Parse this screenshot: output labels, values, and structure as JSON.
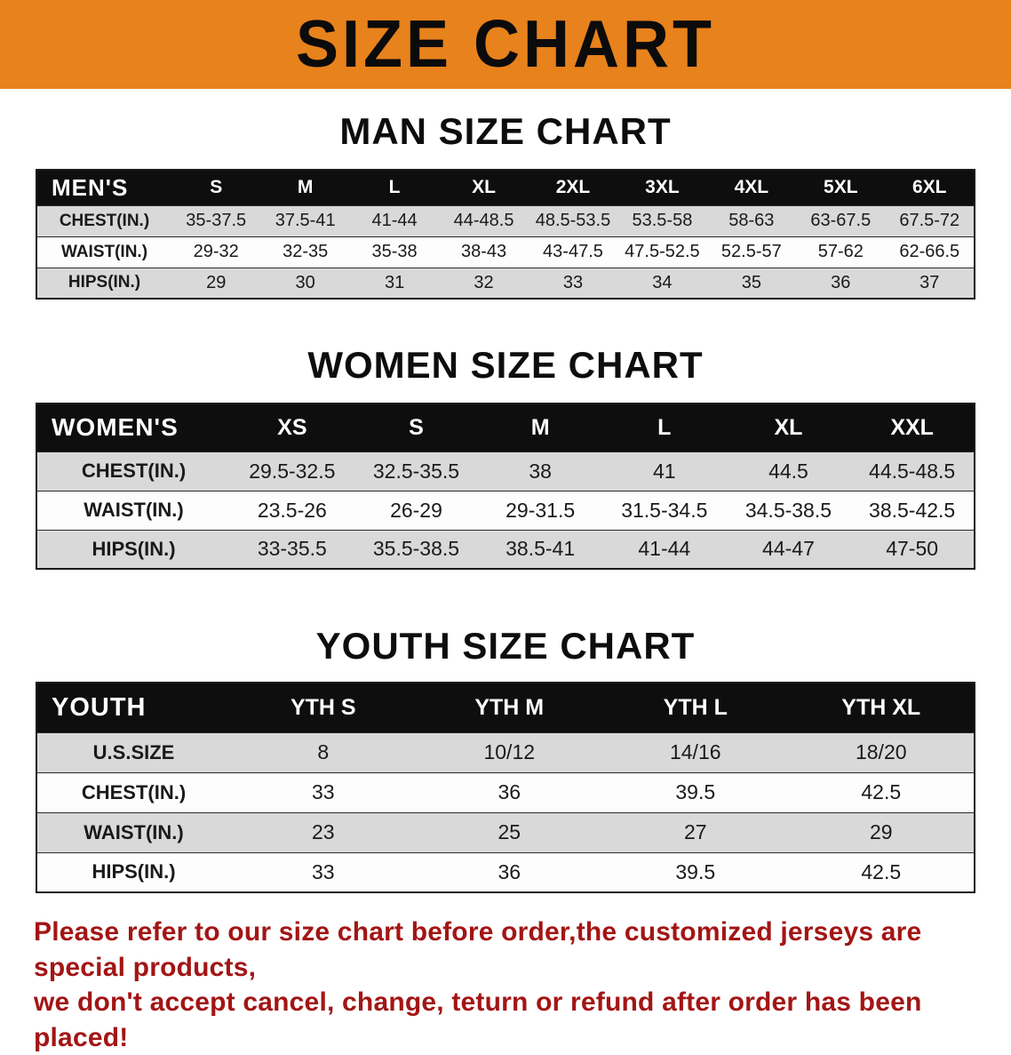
{
  "colors": {
    "banner_bg": "#e8821c",
    "header_row_bg": "#0e0e0e",
    "stripe_bg": "#d9d9d9",
    "note_color": "#a31515"
  },
  "banner": {
    "title": "SIZE CHART"
  },
  "sections": [
    {
      "heading": "MAN SIZE CHART",
      "table": {
        "header": [
          "MEN'S",
          "S",
          "M",
          "L",
          "XL",
          "2XL",
          "3XL",
          "4XL",
          "5XL",
          "6XL"
        ],
        "rows": [
          [
            "CHEST(IN.)",
            "35-37.5",
            "37.5-41",
            "41-44",
            "44-48.5",
            "48.5-53.5",
            "53.5-58",
            "58-63",
            "63-67.5",
            "67.5-72"
          ],
          [
            "WAIST(IN.)",
            "29-32",
            "32-35",
            "35-38",
            "38-43",
            "43-47.5",
            "47.5-52.5",
            "52.5-57",
            "57-62",
            "62-66.5"
          ],
          [
            "HIPS(IN.)",
            "29",
            "30",
            "31",
            "32",
            "33",
            "34",
            "35",
            "36",
            "37"
          ]
        ]
      }
    },
    {
      "heading": "WOMEN SIZE CHART",
      "table": {
        "header": [
          "WOMEN'S",
          "XS",
          "S",
          "M",
          "L",
          "XL",
          "XXL"
        ],
        "rows": [
          [
            "CHEST(IN.)",
            "29.5-32.5",
            "32.5-35.5",
            "38",
            "41",
            "44.5",
            "44.5-48.5"
          ],
          [
            "WAIST(IN.)",
            "23.5-26",
            "26-29",
            "29-31.5",
            "31.5-34.5",
            "34.5-38.5",
            "38.5-42.5"
          ],
          [
            "HIPS(IN.)",
            "33-35.5",
            "35.5-38.5",
            "38.5-41",
            "41-44",
            "44-47",
            "47-50"
          ]
        ]
      }
    },
    {
      "heading": "YOUTH SIZE CHART",
      "table": {
        "header": [
          "YOUTH",
          "YTH S",
          "YTH M",
          "YTH L",
          "YTH XL"
        ],
        "rows": [
          [
            "U.S.SIZE",
            "8",
            "10/12",
            "14/16",
            "18/20"
          ],
          [
            "CHEST(IN.)",
            "33",
            "36",
            "39.5",
            "42.5"
          ],
          [
            "WAIST(IN.)",
            "23",
            "25",
            "27",
            "29"
          ],
          [
            "HIPS(IN.)",
            "33",
            "36",
            "39.5",
            "42.5"
          ]
        ]
      }
    }
  ],
  "note": {
    "line1": "Please refer to our size chart before order,the customized jerseys are special products,",
    "line2": "we don't accept cancel, change, teturn or refund after order has been placed!"
  }
}
